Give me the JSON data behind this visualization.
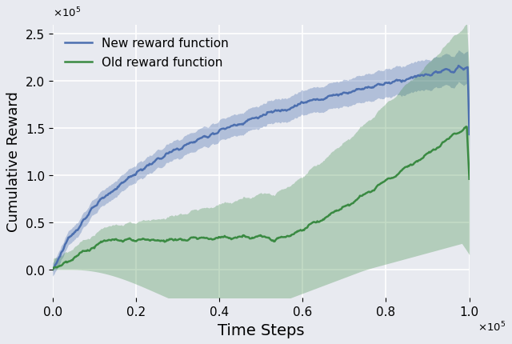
{
  "title": "",
  "xlabel": "Time Steps",
  "ylabel": "Cumulative Reward",
  "xlim": [
    0,
    100000
  ],
  "ylim": [
    -30000,
    260000
  ],
  "background_color": "#e8eaf0",
  "grid_color": "#ffffff",
  "blue_color": "#4c6faf",
  "blue_fill_alpha": 0.35,
  "green_color": "#3a8a42",
  "green_fill_alpha": 0.3,
  "legend_labels": [
    "New reward function",
    "Old reward function"
  ],
  "xlabel_fontsize": 14,
  "ylabel_fontsize": 13,
  "tick_fontsize": 11,
  "legend_fontsize": 11
}
